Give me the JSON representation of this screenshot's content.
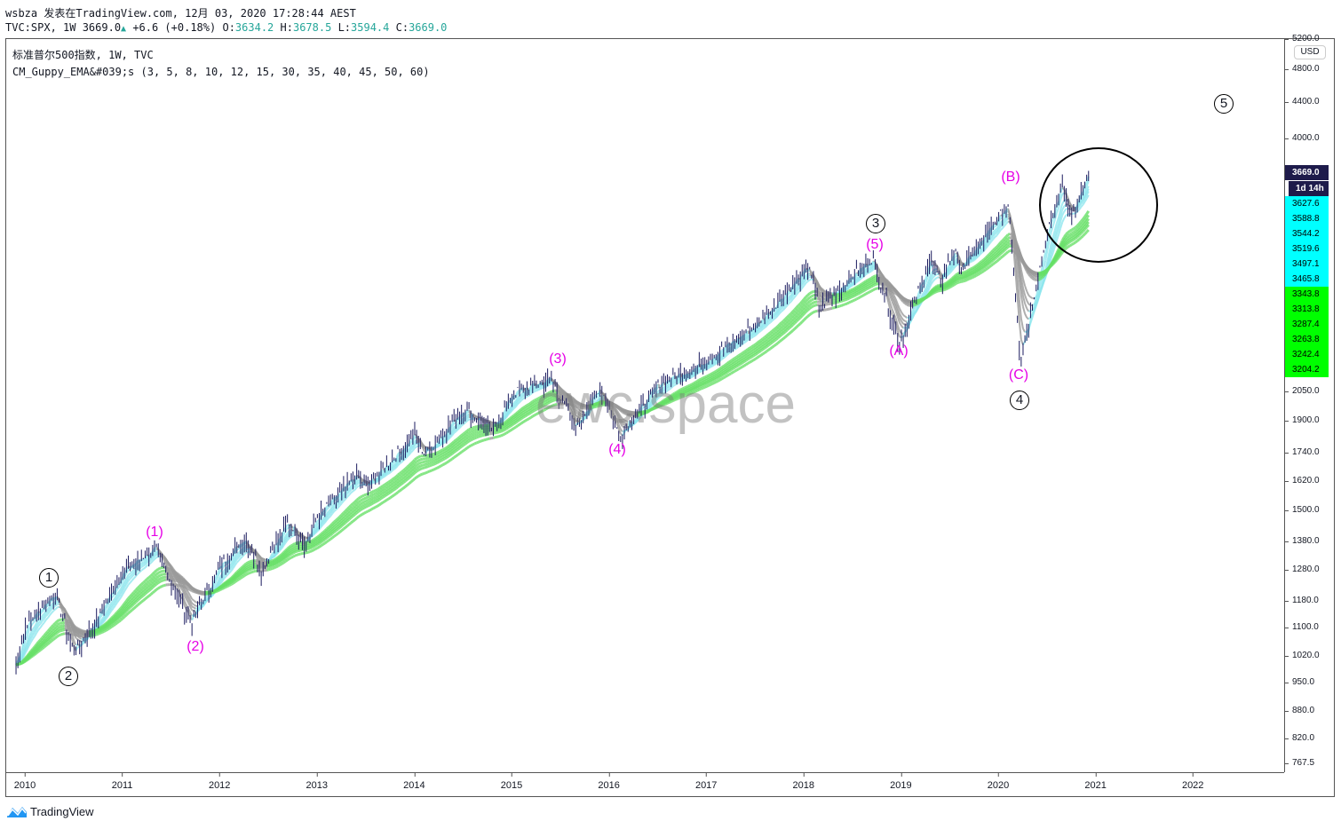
{
  "header": {
    "user": "wsbza",
    "published": "发表在TradingView.com, 12月 03, 2020 17:28:44 AEST",
    "symbol": "TVC:SPX, 1W 3669.0",
    "change": "+6.6 (+0.18%)",
    "o_label": "O:",
    "o": "3634.2",
    "h_label": "H:",
    "h": "3678.5",
    "l_label": "L:",
    "l": "3594.4",
    "c_label": "C:",
    "c": "3669.0"
  },
  "legend": {
    "title": "标准普尔500指数, 1W, TVC",
    "indicator": "CM_Guppy_EMA&#039;s (3, 5, 8, 10, 12, 15, 30, 35, 40, 45, 50, 60)"
  },
  "currency": "USD",
  "watermark": "ewc.space",
  "price_ticks": [
    "5200.0",
    "4800.0",
    "4400.0",
    "4000.0",
    "2050.0",
    "1900.0",
    "1740.0",
    "1620.0",
    "1500.0",
    "1380.0",
    "1280.0",
    "1180.0",
    "1100.0",
    "1020.0",
    "950.0",
    "880.0",
    "820.0",
    "767.5"
  ],
  "price_tags": [
    {
      "text": "3669.0",
      "bg": "#1e1b4b",
      "fg": "#ffffff"
    },
    {
      "text": "1d 14h",
      "bg": "#1e1b4b",
      "fg": "#ffffff"
    },
    {
      "text": "3627.6",
      "bg": "#00ffff",
      "fg": "#000"
    },
    {
      "text": "3588.8",
      "bg": "#00ffff",
      "fg": "#000"
    },
    {
      "text": "3544.2",
      "bg": "#00ffff",
      "fg": "#000"
    },
    {
      "text": "3519.6",
      "bg": "#00ffff",
      "fg": "#000"
    },
    {
      "text": "3497.1",
      "bg": "#00ffff",
      "fg": "#000"
    },
    {
      "text": "3465.8",
      "bg": "#00ffff",
      "fg": "#000"
    },
    {
      "text": "3343.8",
      "bg": "#00ff00",
      "fg": "#000"
    },
    {
      "text": "3313.8",
      "bg": "#00ff00",
      "fg": "#000"
    },
    {
      "text": "3287.4",
      "bg": "#00ff00",
      "fg": "#000"
    },
    {
      "text": "3263.8",
      "bg": "#00ff00",
      "fg": "#000"
    },
    {
      "text": "3242.4",
      "bg": "#00ff00",
      "fg": "#000"
    },
    {
      "text": "3204.2",
      "bg": "#00ff00",
      "fg": "#000"
    }
  ],
  "years": [
    "2010",
    "2011",
    "2012",
    "2013",
    "2014",
    "2015",
    "2016",
    "2017",
    "2018",
    "2019",
    "2020",
    "2021",
    "2022"
  ],
  "wave_labels": {
    "w1": "(1)",
    "w2": "(2)",
    "w3": "(3)",
    "w4": "(4)",
    "w5": "(5)",
    "a": "(A)",
    "b": "(B)",
    "c": "(C)"
  },
  "circled_labels": {
    "c1": "1",
    "c2": "2",
    "c3": "3",
    "c4": "4",
    "c5": "5"
  },
  "brand": "TradingView",
  "chart_data": {
    "type": "line",
    "title": "标准普尔500指数, 1W, TVC",
    "scale": "log",
    "ylim": [
      767.5,
      5200
    ],
    "xlim": [
      2009.9,
      2023.0
    ],
    "anchors": [
      [
        2009.9,
        1000
      ],
      [
        2010.0,
        1110
      ],
      [
        2010.3,
        1210
      ],
      [
        2010.5,
        1030
      ],
      [
        2010.75,
        1140
      ],
      [
        2011.0,
        1280
      ],
      [
        2011.33,
        1360
      ],
      [
        2011.7,
        1120
      ],
      [
        2012.0,
        1300
      ],
      [
        2012.25,
        1400
      ],
      [
        2012.42,
        1290
      ],
      [
        2012.7,
        1460
      ],
      [
        2012.88,
        1380
      ],
      [
        2013.0,
        1480
      ],
      [
        2013.4,
        1650
      ],
      [
        2013.5,
        1600
      ],
      [
        2014.0,
        1840
      ],
      [
        2014.1,
        1740
      ],
      [
        2014.5,
        1970
      ],
      [
        2014.8,
        1860
      ],
      [
        2015.0,
        2050
      ],
      [
        2015.4,
        2130
      ],
      [
        2015.65,
        1870
      ],
      [
        2015.9,
        2090
      ],
      [
        2016.1,
        1830
      ],
      [
        2016.5,
        2100
      ],
      [
        2016.9,
        2200
      ],
      [
        2017.5,
        2450
      ],
      [
        2018.05,
        2870
      ],
      [
        2018.15,
        2580
      ],
      [
        2018.7,
        2930
      ],
      [
        2018.98,
        2350
      ],
      [
        2019.3,
        2940
      ],
      [
        2019.4,
        2750
      ],
      [
        2019.55,
        3020
      ],
      [
        2019.6,
        2840
      ],
      [
        2020.1,
        3380
      ],
      [
        2020.22,
        2240
      ],
      [
        2020.5,
        3150
      ],
      [
        2020.65,
        3580
      ],
      [
        2020.75,
        3270
      ],
      [
        2020.92,
        3669
      ]
    ],
    "emas": [
      3,
      5,
      8,
      10,
      12,
      15,
      30,
      35,
      40,
      45,
      50,
      60
    ]
  }
}
